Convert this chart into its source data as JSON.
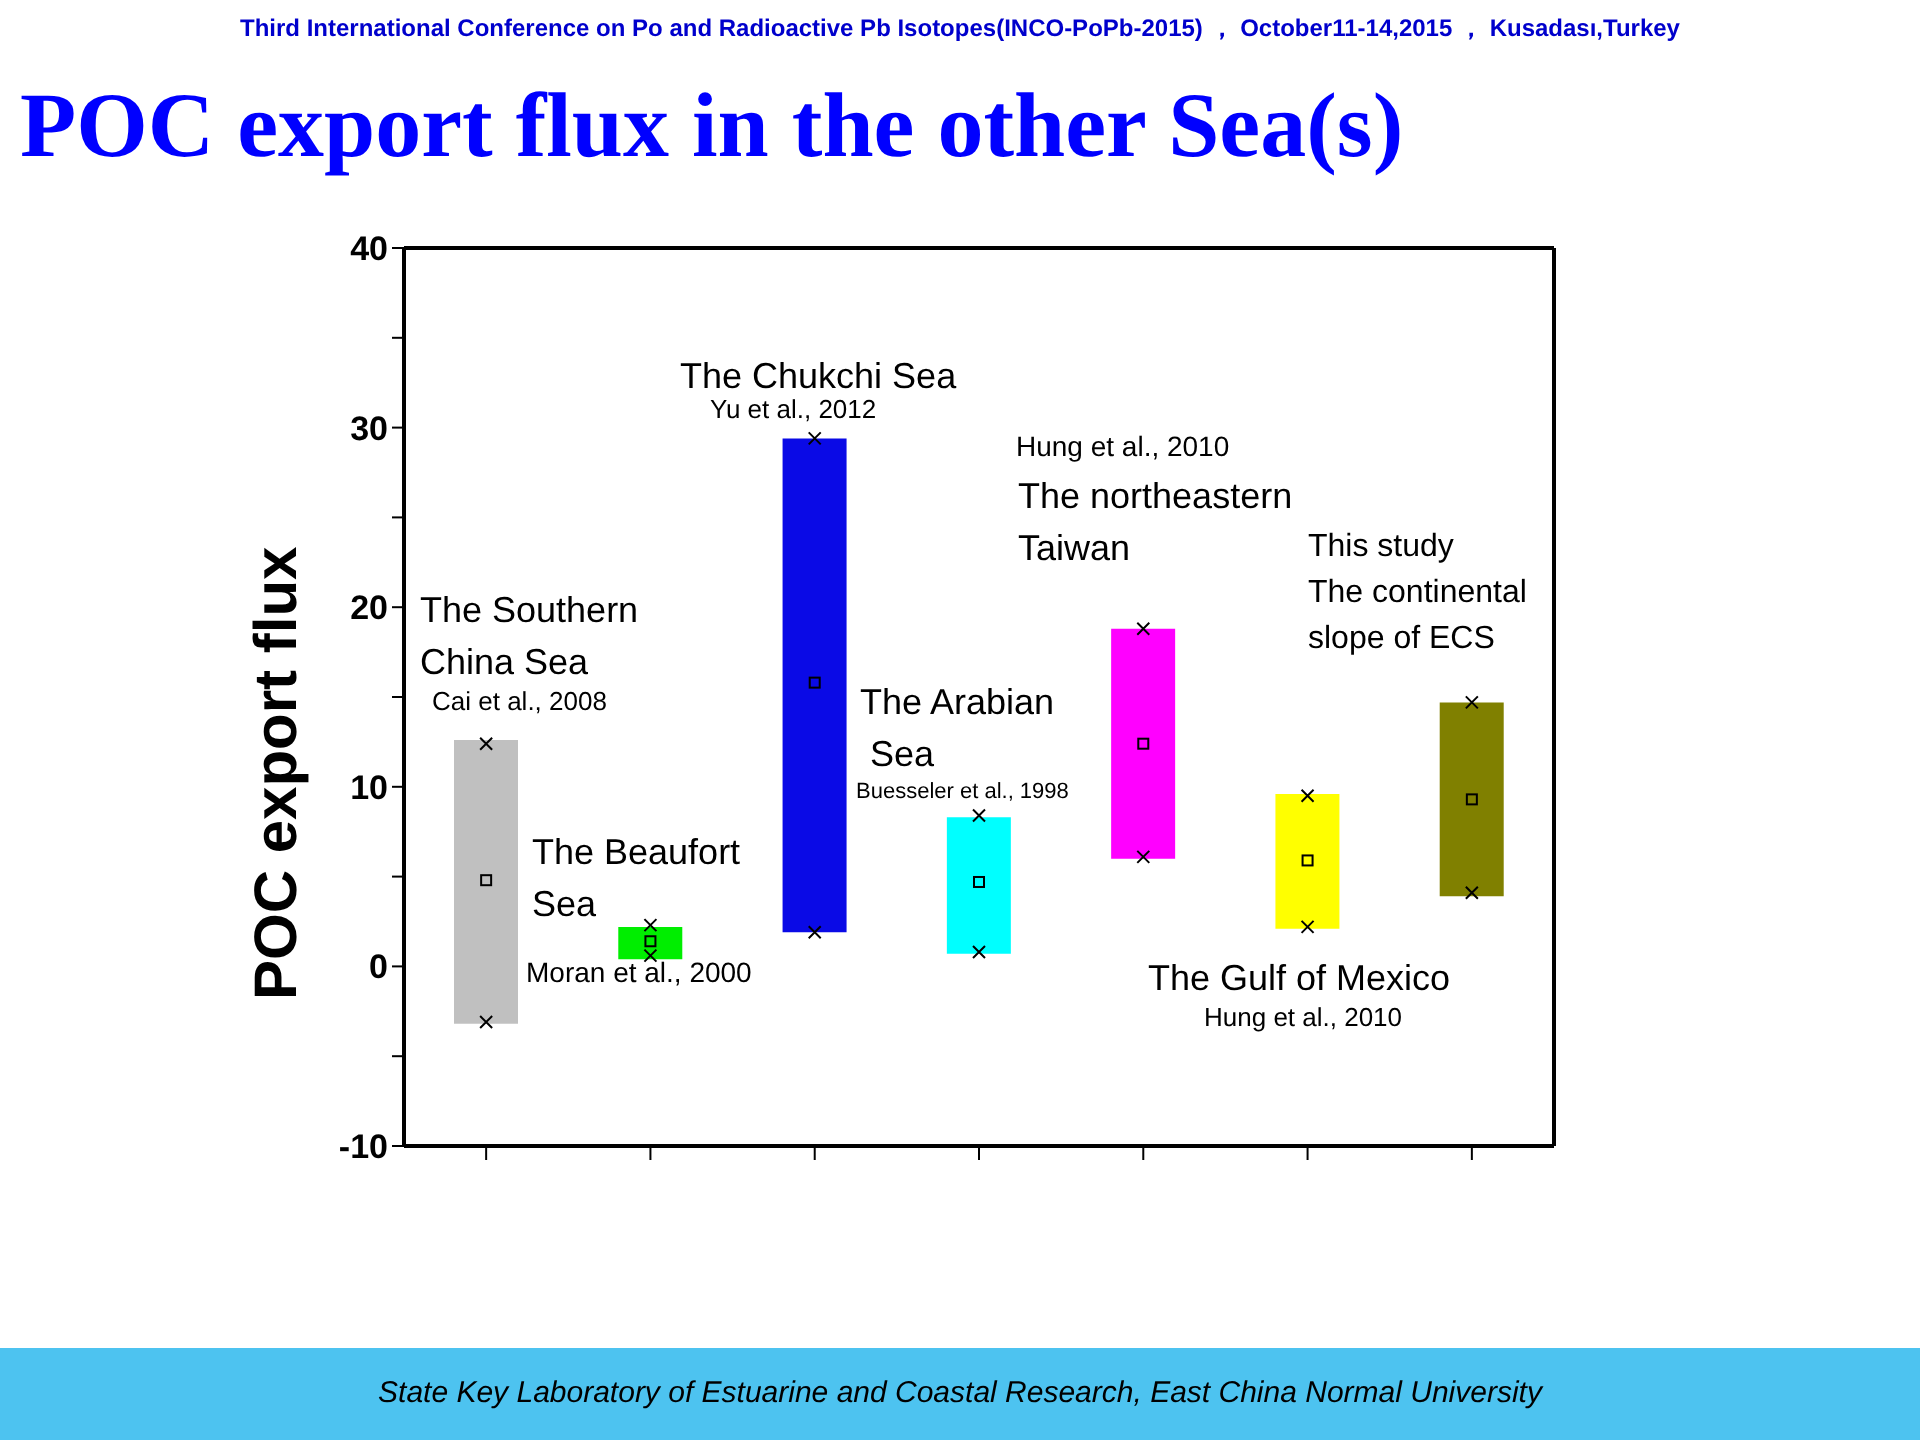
{
  "chart_data": {
    "type": "bar",
    "title": "POC export flux in the other Sea(s)",
    "ylabel": "POC export flux",
    "categories": [
      null,
      null,
      null,
      null,
      null,
      null,
      null
    ],
    "series": [
      {
        "colors": [
          "#c0c0c0",
          "#00ee00",
          "#0a0ae6",
          "#00ffff",
          "#ff00ff",
          "#ffff00",
          "#808000"
        ],
        "base": [
          -3.2,
          0.4,
          1.9,
          0.7,
          6.0,
          2.1,
          3.9
        ],
        "values": [
          15.8,
          1.8,
          27.5,
          7.6,
          12.8,
          7.5,
          10.8
        ]
      },
      {
        "type": "scatter",
        "marker": "square",
        "color": "#000000",
        "values": [
          4.8,
          1.4,
          15.8,
          4.7,
          12.4,
          5.9,
          9.3
        ]
      },
      {
        "type": "scatter",
        "marker": "cross",
        "color": "#000000",
        "values": [
          12.4,
          2.3,
          29.4,
          8.4,
          18.8,
          9.5,
          14.7
        ]
      },
      {
        "type": "scatter",
        "marker": "cross",
        "color": "#000000",
        "values": [
          -3.1,
          0.6,
          1.9,
          0.8,
          6.1,
          2.2,
          4.1
        ]
      }
    ],
    "ylim": [
      -10,
      40
    ],
    "yticks": [
      -10,
      {
        "value": -5,
        "label": null
      },
      0,
      {
        "value": 5,
        "label": null
      },
      10,
      {
        "value": 15,
        "label": null
      },
      20,
      {
        "value": 25,
        "label": null
      },
      30,
      {
        "value": 35,
        "label": null
      },
      40
    ],
    "tick_labels": "y",
    "grid": false,
    "legend": false,
    "annotations": [
      "The Southern\nChina Sea",
      "Cai et al., 2008",
      "The Beaufort\nSea",
      "Moran et al., 2000",
      "The Chukchi Sea",
      "Yu et al., 2012",
      "The Arabian\n Sea",
      "Buesseler et al., 1998",
      "Hung et al., 2010",
      "The northeastern\nTaiwan",
      "This study\nThe continental\nslope of ECS",
      "The Gulf of Mexico",
      "Hung et al., 2010",
      "Third International Conference on Po and Radioactive Pb Isotopes(INCO-PoPb-2015) ， October11-14,2015 ， Kusadası,Turkey",
      "State Key Laboratory of Estuarine and Coastal Research, East China Normal University"
    ]
  }
}
